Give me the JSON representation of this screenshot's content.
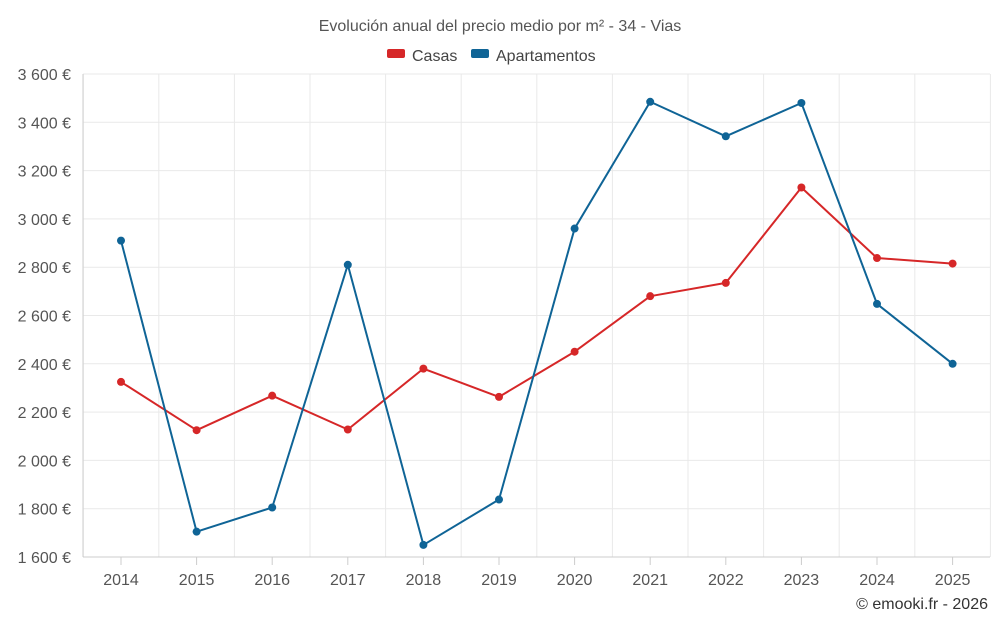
{
  "chart_data": {
    "type": "line",
    "title": "Evolución anual del precio medio por m² - 34 - Vias",
    "categories": [
      "2014",
      "2015",
      "2016",
      "2017",
      "2018",
      "2019",
      "2020",
      "2021",
      "2022",
      "2023",
      "2024",
      "2025"
    ],
    "series": [
      {
        "name": "Casas",
        "color": "#d62728",
        "values": [
          2325,
          2125,
          2268,
          2128,
          2380,
          2263,
          2450,
          2680,
          2735,
          3130,
          2838,
          2815
        ]
      },
      {
        "name": "Apartamentos",
        "color": "#0f6496",
        "values": [
          2910,
          1705,
          1805,
          2810,
          1650,
          1838,
          2960,
          3485,
          3342,
          3480,
          2648,
          2400
        ]
      }
    ],
    "ylim": [
      1600,
      3600
    ],
    "yticks": [
      1600,
      1800,
      2000,
      2200,
      2400,
      2600,
      2800,
      3000,
      3200,
      3400,
      3600
    ],
    "ytick_labels": [
      "1 600 €",
      "1 800 €",
      "2 000 €",
      "2 200 €",
      "2 400 €",
      "2 600 €",
      "2 800 €",
      "3 000 €",
      "3 200 €",
      "3 400 €",
      "3 600 €"
    ],
    "xlabel": "",
    "ylabel": "",
    "grid": true,
    "legend_position": "top-center"
  },
  "credit": "© emooki.fr - 2026"
}
